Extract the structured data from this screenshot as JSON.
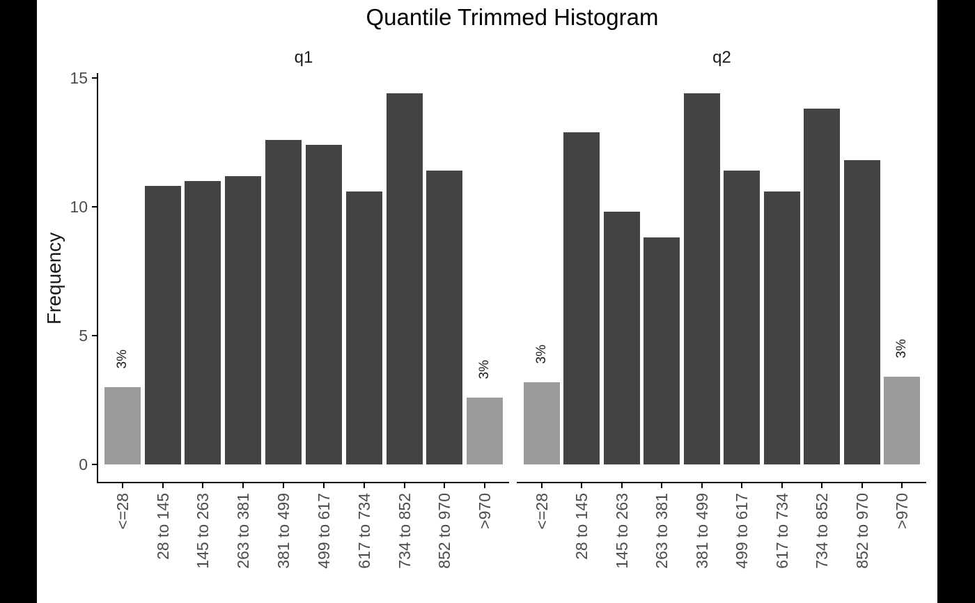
{
  "chart_data": {
    "type": "bar",
    "title": "Quantile Trimmed Histogram",
    "ylabel": "Frequency",
    "xlabel": "",
    "ylim": [
      0,
      15.2
    ],
    "yticks": [
      0,
      5,
      10,
      15
    ],
    "grid": false,
    "legend": "none",
    "facet_layout": "two panels side by side, shared y axis",
    "categories": [
      "<=28",
      "28 to 145",
      "145 to 263",
      "263 to 381",
      "381 to 499",
      "499 to 617",
      "617 to 734",
      "734 to 852",
      "852 to 970",
      ">970"
    ],
    "facets": [
      {
        "name": "q1",
        "values": [
          3.0,
          10.8,
          11.0,
          11.2,
          12.6,
          12.4,
          10.6,
          14.4,
          11.4,
          2.6
        ],
        "bar_labels": [
          "3%",
          "",
          "",
          "",
          "",
          "",
          "",
          "",
          "",
          "3%"
        ]
      },
      {
        "name": "q2",
        "values": [
          3.2,
          12.9,
          9.8,
          8.8,
          14.4,
          11.4,
          10.6,
          13.8,
          11.8,
          3.4
        ],
        "bar_labels": [
          "3%",
          "",
          "",
          "",
          "",
          "",
          "",
          "",
          "",
          "3%"
        ]
      }
    ],
    "trimmed_bar_indices": [
      0,
      9
    ],
    "colors": {
      "bar_fill": "#434343",
      "trimmed_bar_fill": "#9b9b9b",
      "axis_line": "#000000",
      "tick_label_text": "#4d4d4d",
      "strip_text": "#1a1a1a",
      "title_text": "#000000",
      "y_axis_title_text": "#1a1a1a",
      "bar_label_text": "#1a1a1a",
      "panel_background": "#ffffff",
      "page_background": "#000000"
    }
  }
}
